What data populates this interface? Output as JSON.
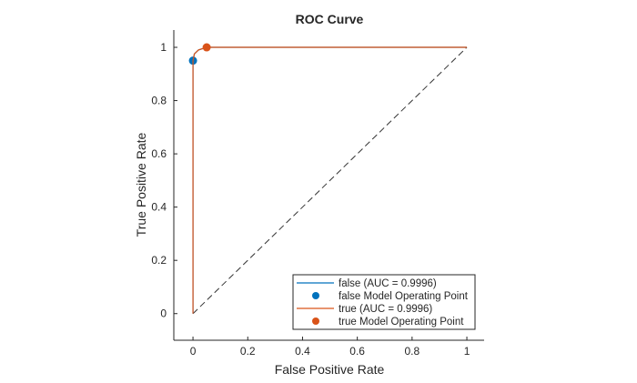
{
  "chart_data": {
    "type": "line",
    "title": "ROC Curve",
    "xlabel": "False Positive Rate",
    "ylabel": "True Positive Rate",
    "xlim": [
      -0.07,
      1.063
    ],
    "ylim": [
      -0.1,
      1.065
    ],
    "xticks": [
      0,
      0.2,
      0.4,
      0.6,
      0.8,
      1
    ],
    "yticks": [
      0,
      0.2,
      0.4,
      0.6,
      0.8,
      1
    ],
    "xtick_labels": [
      "0",
      "0.2",
      "0.4",
      "0.6",
      "0.8",
      "1"
    ],
    "ytick_labels": [
      "0",
      "0.2",
      "0.4",
      "0.6",
      "0.8",
      "1"
    ],
    "grid": false,
    "legend_placement": "bottom-right",
    "series": [
      {
        "name": "false (AUC = 0.9996)",
        "kind": "line",
        "color": "#0072BD",
        "x": [
          0,
          0,
          0.005,
          0.02,
          0.05,
          1
        ],
        "y": [
          0,
          0.95,
          0.975,
          0.99,
          1,
          1
        ]
      },
      {
        "name": "false Model Operating Point",
        "kind": "point",
        "color": "#0072BD",
        "x": [
          0
        ],
        "y": [
          0.95
        ]
      },
      {
        "name": "true (AUC = 0.9996)",
        "kind": "line",
        "color": "#D95319",
        "x": [
          0,
          0,
          0.005,
          0.02,
          0.05,
          1
        ],
        "y": [
          0,
          0.95,
          0.975,
          0.99,
          1,
          1
        ]
      },
      {
        "name": "true Model Operating Point",
        "kind": "point",
        "color": "#D95319",
        "x": [
          0.05
        ],
        "y": [
          1
        ]
      }
    ],
    "reference_line": {
      "x": [
        0,
        1
      ],
      "y": [
        0,
        1
      ],
      "style": "dashed",
      "color": "#333333"
    }
  }
}
